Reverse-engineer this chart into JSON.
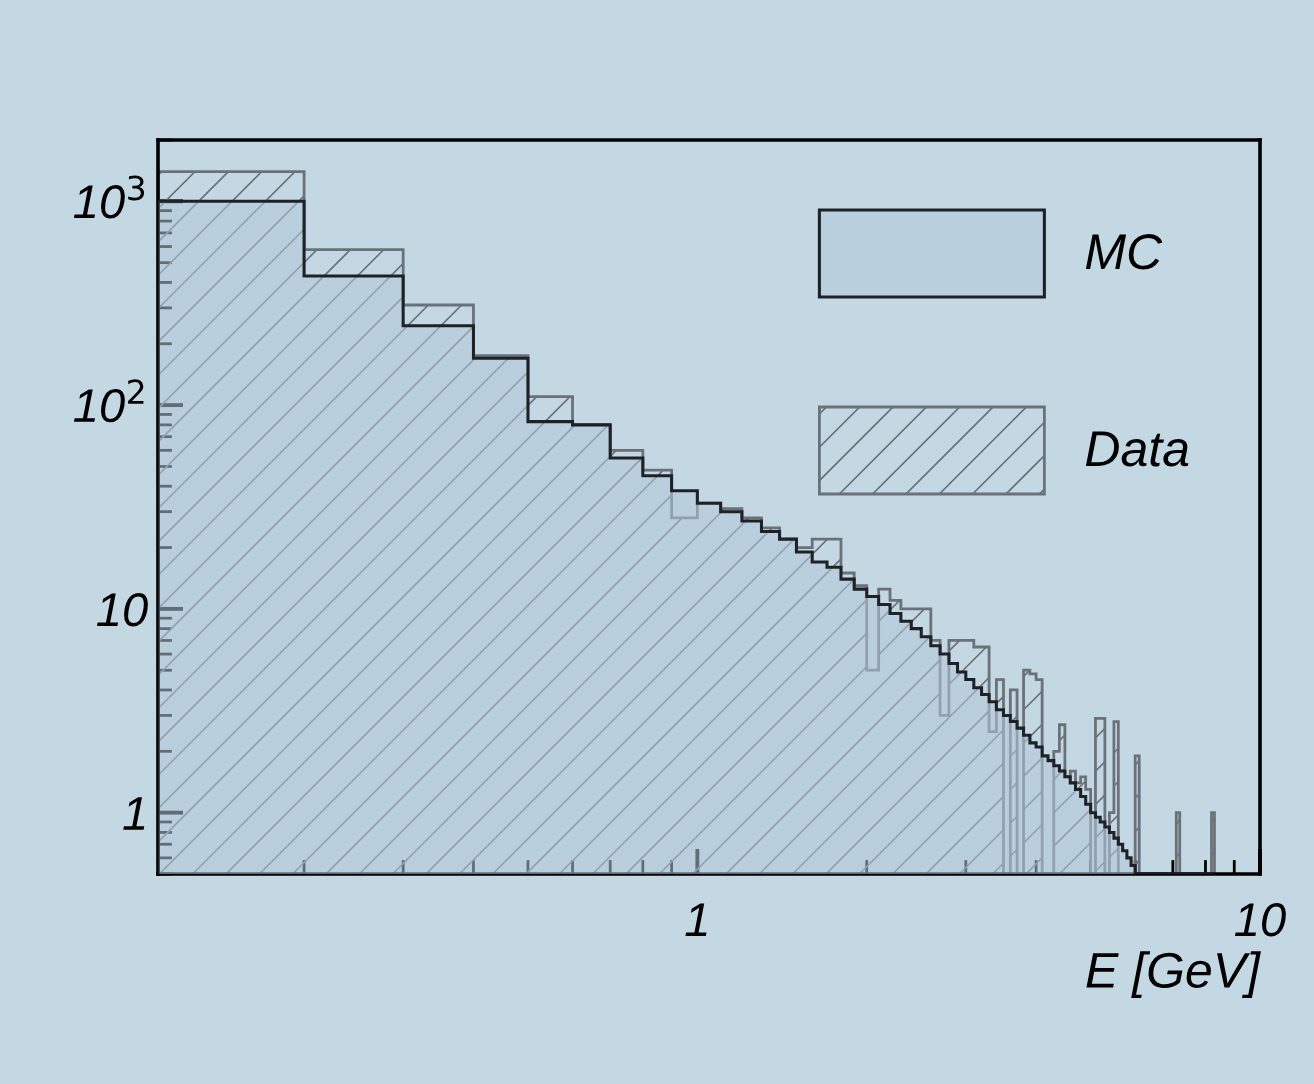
{
  "chart_data": {
    "type": "histogram",
    "xlabel": "E [GeV]",
    "log": "xy",
    "xlim": [
      0.11,
      10
    ],
    "ylim": [
      0.5,
      2000
    ],
    "xticks": [
      1,
      10
    ],
    "yticks": [
      1,
      10,
      {
        "value": 100,
        "label": "10$^{2}$"
      },
      {
        "value": 1000,
        "label": "10$^{3}$"
      }
    ],
    "bins": [
      0.11,
      0.2,
      0.3,
      0.4,
      0.5,
      0.6,
      0.7,
      0.8,
      0.9,
      1.0,
      1.1,
      1.2,
      1.3,
      1.4,
      1.5,
      1.6,
      1.7,
      1.8,
      1.9,
      2.0,
      2.1,
      2.2,
      2.3,
      2.4,
      2.5,
      2.6,
      2.7,
      2.8,
      2.9,
      3.0,
      3.1,
      3.2,
      3.3,
      3.4,
      3.5,
      3.6,
      3.7,
      3.8,
      3.9,
      4.0,
      4.1,
      4.2,
      4.3,
      4.4,
      4.5,
      4.6,
      4.7,
      4.8,
      4.9,
      5.0,
      5.1,
      5.2,
      5.3,
      5.4,
      5.5,
      5.6,
      5.7,
      5.8,
      5.9,
      6.0,
      6.1,
      6.2,
      6.3,
      6.4,
      6.5,
      6.6,
      6.7,
      6.8,
      6.9,
      7.0,
      7.1,
      7.2,
      7.3,
      7.4,
      7.5,
      7.6,
      7.7,
      7.8,
      7.9,
      8.0,
      8.1,
      8.2,
      8.3
    ],
    "series": [
      {
        "name": "MC",
        "color": "#b3c8d8",
        "values": [
          1000,
          430,
          245,
          170,
          83,
          80,
          55,
          45,
          38,
          33,
          30,
          27,
          24,
          22,
          19,
          17,
          16,
          14,
          12.5,
          11.5,
          10.5,
          9.5,
          8.7,
          8,
          7.3,
          6.6,
          6,
          5.4,
          4.9,
          4.5,
          4.1,
          3.8,
          3.5,
          3.2,
          3.0,
          2.8,
          2.6,
          2.4,
          2.2,
          2.1,
          1.9,
          1.8,
          1.7,
          1.6,
          1.5,
          1.4,
          1.3,
          1.2,
          1.1,
          1.0,
          0.95,
          0.9,
          0.85,
          0.8,
          0.75,
          0.7,
          0.65,
          0.6,
          0.55,
          null,
          null,
          null,
          null,
          null,
          null,
          null,
          null,
          null,
          null,
          null,
          null,
          null,
          null,
          null,
          null,
          null,
          null,
          null,
          null,
          null,
          null,
          null
        ]
      },
      {
        "name": "Data",
        "color": "#6a7178",
        "values": [
          1400,
          580,
          310,
          175,
          110,
          80,
          60,
          48,
          28,
          33,
          31,
          28,
          25,
          22,
          20,
          22,
          22,
          15,
          13,
          5,
          12.5,
          11,
          10,
          10,
          10,
          7,
          3,
          7,
          7,
          7,
          6.5,
          6.5,
          2.5,
          4.5,
          null,
          4,
          null,
          5,
          4.8,
          4.5,
          null,
          null,
          2,
          2.7,
          1.5,
          1.6,
          1.4,
          1.5,
          1.3,
          null,
          2.9,
          2.9,
          null,
          1,
          2.8,
          null,
          null,
          null,
          null,
          1.9,
          null,
          null,
          null,
          null,
          null,
          null,
          null,
          null,
          null,
          null,
          1.0,
          null,
          null,
          null,
          null,
          null,
          null,
          null,
          null,
          null,
          null,
          1.0
        ]
      }
    ],
    "legend": "top right"
  }
}
